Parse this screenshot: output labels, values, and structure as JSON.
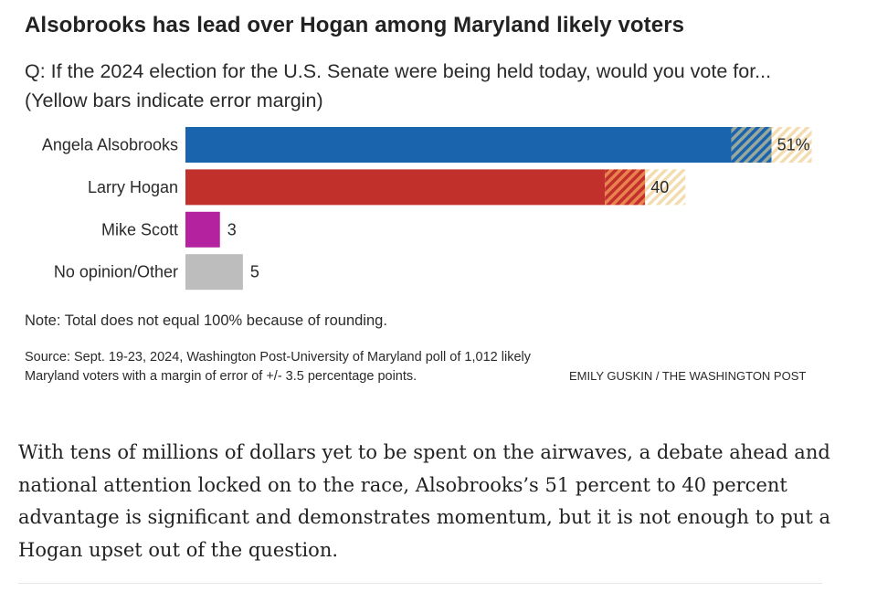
{
  "header": {
    "title": "Alsobrooks has lead over Hogan among Maryland likely voters",
    "question": "Q: If the 2024 election for the U.S. Senate were being held today, would you vote for... (Yellow bars indicate error margin)"
  },
  "chart_data": {
    "type": "bar",
    "orientation": "horizontal",
    "title": "Alsobrooks has lead over Hogan among Maryland likely voters",
    "subtitle": "Q: If the 2024 election for the U.S. Senate were being held today, would you vote for... (Yellow bars indicate error margin)",
    "xlabel": "",
    "ylabel": "",
    "unit": "percent",
    "categories": [
      "Angela Alsobrooks",
      "Larry Hogan",
      "Mike Scott",
      "No opinion/Other"
    ],
    "values": [
      51,
      40,
      3,
      5
    ],
    "value_labels": [
      "51%",
      "40",
      "3",
      "5"
    ],
    "colors": [
      "#1a63ad",
      "#c1302a",
      "#b5229f",
      "#bdbdbd"
    ],
    "hatch_colors": [
      "#9aa89b",
      "#e9824e",
      null,
      null
    ],
    "error_margin": 3.5,
    "error_margin_applies_to": [
      "Angela Alsobrooks",
      "Larry Hogan"
    ],
    "error_margin_color": "#f3dcb0",
    "xlim": [
      0,
      60
    ],
    "grid": false,
    "legend": "none"
  },
  "footer": {
    "note": "Note: Total does not equal 100% because of rounding.",
    "source": "Source: Sept. 19-23, 2024, Washington Post-University of Maryland poll of 1,012 likely Maryland voters with a margin of error of +/- 3.5 percentage points.",
    "credit": "EMILY GUSKIN / THE WASHINGTON POST"
  },
  "article": {
    "paragraph": "With tens of millions of dollars yet to be spent on the airwaves, a debate ahead and national attention locked on to the race, Alsobrooks’s 51 percent to 40 percent advantage is significant and demonstrates momentum, but it is not enough to put a Hogan upset out of the question."
  }
}
